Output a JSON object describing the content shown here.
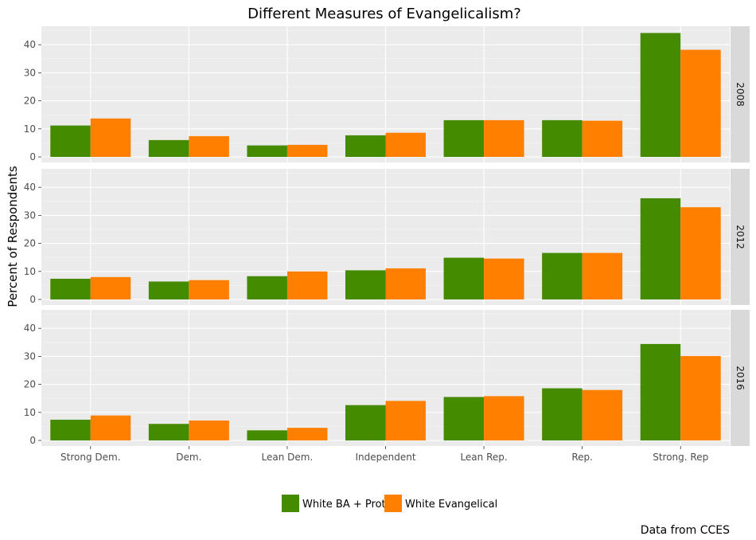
{
  "chart_data": {
    "type": "bar",
    "title": "Different Measures of Evangelicalism?",
    "ylabel": "Percent of Respondents",
    "xlabel": "",
    "caption": "Data from CCES",
    "categories": [
      "Strong Dem.",
      "Dem.",
      "Lean Dem.",
      "Independent",
      "Lean Rep.",
      "Rep.",
      "Strong. Rep"
    ],
    "ylim": [
      0,
      46
    ],
    "yticks": [
      "0",
      "10",
      "20",
      "30",
      "40"
    ],
    "colors": {
      "White BA + Prot": "#458B00",
      "White Evangelical": "#FF7F00"
    },
    "legend": {
      "position": "bottom",
      "entries": [
        "White BA + Prot",
        "White Evangelical"
      ]
    },
    "panels": [
      {
        "label": "2008",
        "series": [
          {
            "name": "White BA + Prot",
            "values": [
              11.2,
              6.0,
              4.1,
              7.7,
              13.1,
              13.1,
              44.2
            ]
          },
          {
            "name": "White Evangelical",
            "values": [
              13.7,
              7.4,
              4.3,
              8.6,
              13.1,
              12.9,
              38.2
            ]
          }
        ]
      },
      {
        "label": "2012",
        "series": [
          {
            "name": "White BA + Prot",
            "values": [
              7.4,
              6.4,
              8.3,
              10.4,
              14.9,
              16.6,
              36.1
            ]
          },
          {
            "name": "White Evangelical",
            "values": [
              8.0,
              6.9,
              10.0,
              11.1,
              14.6,
              16.6,
              32.9
            ]
          }
        ]
      },
      {
        "label": "2016",
        "series": [
          {
            "name": "White BA + Prot",
            "values": [
              7.4,
              5.9,
              3.6,
              12.6,
              15.5,
              18.6,
              34.4
            ]
          },
          {
            "name": "White Evangelical",
            "values": [
              8.9,
              7.1,
              4.5,
              14.1,
              15.8,
              18.0,
              30.1
            ]
          }
        ]
      }
    ]
  }
}
